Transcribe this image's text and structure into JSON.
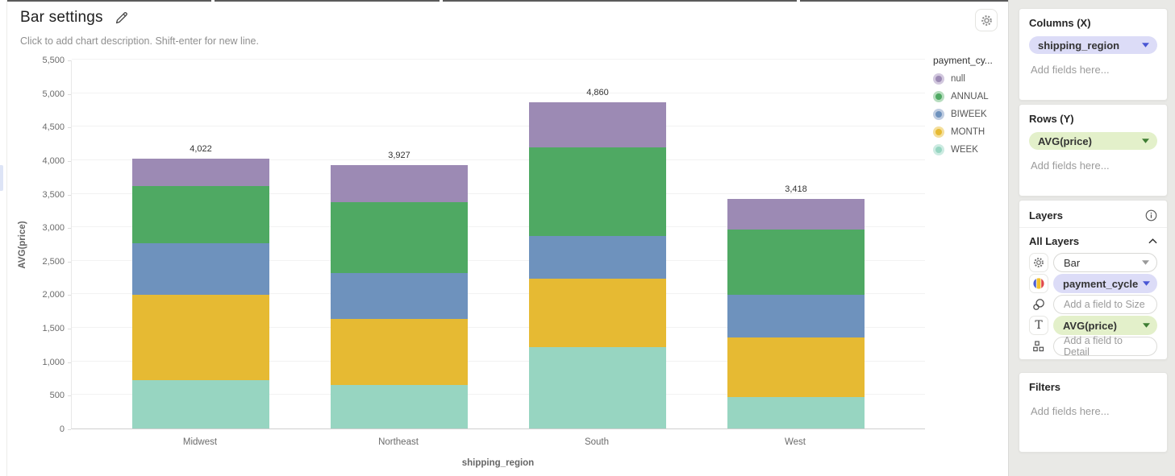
{
  "header": {
    "title": "Bar settings",
    "description_placeholder": "Click to add chart description. Shift-enter for new line."
  },
  "chart_data": {
    "type": "bar",
    "stacked": true,
    "title": "",
    "xlabel": "shipping_region",
    "ylabel": "AVG(price)",
    "ylim": [
      0,
      5500
    ],
    "ytick_step": 500,
    "grid": true,
    "legend_position": "right",
    "legend_title": "payment_cy...",
    "categories": [
      "Midwest",
      "Northeast",
      "South",
      "West"
    ],
    "series": [
      {
        "name": "WEEK",
        "color": "#97d5c1",
        "ring": "#cdebe2",
        "values": [
          717,
          645,
          1215,
          465
        ]
      },
      {
        "name": "MONTH",
        "color": "#e6ba33",
        "ring": "#f4df9d",
        "values": [
          1280,
          985,
          1020,
          890
        ]
      },
      {
        "name": "BIWEEK",
        "color": "#6e92bd",
        "ring": "#c0cde1",
        "values": [
          770,
          690,
          640,
          640
        ]
      },
      {
        "name": "ANNUAL",
        "color": "#4fa963",
        "ring": "#b7ddbf",
        "values": [
          850,
          1060,
          1315,
          975
        ]
      },
      {
        "name": "null",
        "color": "#9c8ab4",
        "ring": "#d2c8de",
        "values": [
          405,
          547,
          670,
          448
        ]
      }
    ],
    "legend_order": [
      "null",
      "ANNUAL",
      "BIWEEK",
      "MONTH",
      "WEEK"
    ],
    "totals": [
      4022,
      3927,
      4860,
      3418
    ]
  },
  "sidebar": {
    "columns_panel": {
      "title": "Columns (X)",
      "field": "shipping_region",
      "placeholder": "Add fields here..."
    },
    "rows_panel": {
      "title": "Rows (Y)",
      "field": "AVG(price)",
      "placeholder": "Add fields here..."
    },
    "layers_panel": {
      "title": "Layers",
      "group_title": "All Layers",
      "rows": [
        {
          "icon": "gear-icon",
          "control": "dropdown",
          "label": "Bar"
        },
        {
          "icon": "palette-icon",
          "control": "pill-blue",
          "label": "payment_cycle"
        },
        {
          "icon": "size-icon",
          "control": "input",
          "label": "Add a field to Size"
        },
        {
          "icon": "text-icon",
          "control": "pill-green",
          "label": "AVG(price)"
        },
        {
          "icon": "detail-icon",
          "control": "input",
          "label": "Add a field to Detail"
        }
      ]
    },
    "filters_panel": {
      "title": "Filters",
      "placeholder": "Add fields here..."
    }
  },
  "colors": {
    "pill_blue_bg": "#dcdcf7",
    "pill_blue_caret": "#4956d4",
    "pill_green_bg": "#e3f0ca",
    "pill_green_caret": "#3e7d33",
    "sidebar_bg": "#e9e9e6"
  }
}
